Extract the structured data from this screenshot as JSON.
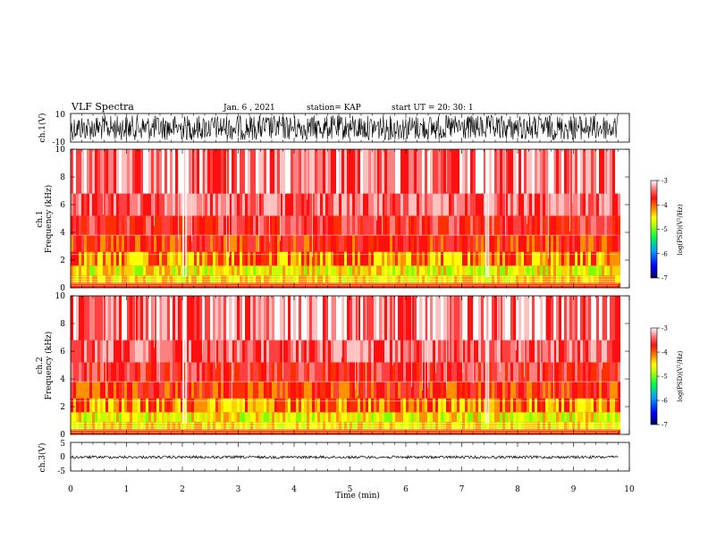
{
  "header": {
    "title": "VLF Spectra",
    "date": "Jan. 6 , 2021",
    "station": "station= KAP",
    "start_ut": "start UT = 20: 30: 1"
  },
  "chart_data": [
    {
      "id": "ch1_waveform",
      "type": "line",
      "ylabel": "ch.1(V)",
      "ylim": [
        -10,
        10
      ],
      "yticks": [
        "10",
        "-10"
      ],
      "xlim": [
        0,
        10
      ],
      "description_series": [
        {
          "x_range": [
            0,
            9.8
          ],
          "y_range": [
            -10,
            10
          ]
        }
      ]
    },
    {
      "id": "ch1_spectrogram",
      "type": "heatmap",
      "ylabel": "ch.1",
      "ylabel2": "Frequency (kHz)",
      "ylim": [
        0,
        10
      ],
      "yticks": [
        "0",
        "2",
        "4",
        "6",
        "8",
        "10"
      ],
      "xlim": [
        0,
        10
      ],
      "data_end_min": 9.8,
      "colorbar": {
        "label": "log(PSD)(V²/Hz)",
        "range": [
          -7,
          -3
        ],
        "ticks": [
          "-3",
          "-4",
          "-5",
          "-6",
          "-7"
        ]
      }
    },
    {
      "id": "ch2_spectrogram",
      "type": "heatmap",
      "ylabel": "ch.2",
      "ylabel2": "Frequency (kHz)",
      "ylim": [
        0,
        10
      ],
      "yticks": [
        "0",
        "2",
        "4",
        "6",
        "8",
        "10"
      ],
      "xlim": [
        0,
        10
      ],
      "data_end_min": 9.8,
      "colorbar": {
        "label": "log(PSD)(V²/Hz)",
        "range": [
          -7,
          -3
        ],
        "ticks": [
          "-3",
          "-4",
          "-5",
          "-6",
          "-7"
        ]
      }
    },
    {
      "id": "ch3_waveform",
      "type": "line",
      "ylabel": "ch.3(V)",
      "ylim": [
        -5,
        5
      ],
      "yticks": [
        "5",
        "0",
        "-5"
      ],
      "xlim": [
        0,
        10
      ],
      "xlabel": "Time (min)",
      "xticks": [
        "0",
        "1",
        "2",
        "3",
        "4",
        "5",
        "6",
        "7",
        "8",
        "9",
        "10"
      ]
    }
  ],
  "colors": {
    "colormap": [
      "#000080",
      "#0000ff",
      "#00a0ff",
      "#00ff00",
      "#c0ff00",
      "#ffff00",
      "#ffc000",
      "#ff8000",
      "#ff2020",
      "#ff6060",
      "#ffc0c0",
      "#ffffff"
    ],
    "text": "#000000",
    "background": "#ffffff"
  }
}
